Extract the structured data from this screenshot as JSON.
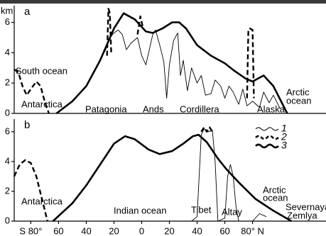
{
  "chart_data": [
    {
      "type": "line",
      "panel_label": "a",
      "y_label": "km",
      "xlim": [
        -92,
        133
      ],
      "ylim": [
        0,
        7.1
      ],
      "yticks": [
        0,
        2,
        4,
        6
      ],
      "annotations": [
        "South ocean",
        "Antarctica",
        "Patagonia",
        "Ands",
        "Cordillera",
        "Alaska",
        "Arctic",
        "ocean"
      ],
      "series": [
        {
          "name": "1",
          "color": "#000000",
          "style": "thin",
          "x": [
            -62,
            -50,
            -40,
            -35,
            -30,
            -26,
            -23,
            -20,
            -17,
            -14,
            -11,
            -8,
            -3,
            0,
            3,
            6,
            8,
            10,
            13,
            16,
            18,
            20,
            23,
            26,
            28,
            30,
            33,
            36,
            40,
            43,
            46,
            50,
            53,
            57,
            60,
            63,
            66,
            70,
            73,
            76,
            80,
            85,
            88,
            92,
            95,
            100
          ],
          "values": [
            0,
            0.8,
            1.8,
            2.7,
            3.5,
            4.2,
            5.0,
            5.3,
            5.5,
            5.2,
            4.2,
            4.6,
            5.0,
            3.8,
            3.2,
            4.4,
            5.2,
            5.5,
            4.5,
            3.4,
            1.0,
            3.2,
            4.8,
            5.3,
            2.5,
            3.5,
            1.5,
            3.0,
            2.0,
            2.5,
            1.2,
            1.3,
            2.2,
            1.8,
            1.0,
            1.8,
            1.4,
            0.6,
            1.6,
            0.5,
            0.8,
            0.4,
            1.4,
            0.7,
            1.2,
            0.3
          ]
        },
        {
          "name": "2",
          "color": "#000000",
          "style": "dashed",
          "x": [
            -92,
            -89,
            -86,
            -83,
            -80,
            -76,
            -73,
            -70,
            -67,
            null,
            -25,
            -24,
            -23,
            -22,
            null,
            -3,
            -1,
            1,
            null,
            76,
            77,
            78,
            80,
            81
          ],
          "values": [
            2.9,
            2.7,
            1.8,
            1.2,
            1.6,
            2.1,
            1.8,
            0.8,
            0,
            null,
            3.8,
            6.9,
            6.6,
            4.0,
            null,
            5.2,
            6.4,
            5.6,
            null,
            1.0,
            5.5,
            5.6,
            5.5,
            1.0
          ]
        },
        {
          "name": "3",
          "color": "#000000",
          "style": "thick",
          "x": [
            -61.5,
            -50,
            -40,
            -30,
            -20,
            -13,
            -5,
            3,
            8,
            15,
            22,
            27,
            32,
            40,
            50,
            60,
            67,
            75,
            80,
            88,
            95,
            105
          ],
          "values": [
            0,
            0.8,
            1.8,
            3.5,
            5.6,
            6.6,
            6.2,
            5.4,
            5.3,
            5.6,
            6.0,
            6.0,
            5.6,
            4.5,
            3.8,
            3.3,
            2.8,
            2.3,
            2.1,
            2.5,
            1.8,
            0
          ]
        }
      ]
    },
    {
      "type": "line",
      "panel_label": "b",
      "xlim": [
        -92,
        133
      ],
      "ylim": [
        0,
        6.85
      ],
      "yticks": [
        0,
        2,
        4,
        6
      ],
      "xticks": [
        {
          "value": -80,
          "label": "S 80°"
        },
        {
          "value": -60,
          "label": "60"
        },
        {
          "value": -40,
          "label": "40"
        },
        {
          "value": -20,
          "label": "20"
        },
        0,
        20,
        40,
        60,
        {
          "value": 80,
          "label": "80° N"
        }
      ],
      "annotations": [
        "Antarctica",
        "Indian ocean",
        "Tibet",
        "Altay",
        "Arctic",
        "ocean",
        "Severnaya",
        "Zemlya"
      ],
      "legend": true,
      "series": [
        {
          "name": "1",
          "color": "#000000",
          "style": "thin",
          "x": [
            36,
            40,
            43,
            45,
            48,
            51,
            53,
            55,
            60,
            62,
            64,
            66,
            68,
            70,
            80,
            85,
            90
          ],
          "values": [
            0,
            0.3,
            5.8,
            6.2,
            6.0,
            6.1,
            4.0,
            0,
            0.2,
            3.0,
            3.8,
            3.0,
            1.0,
            0,
            0,
            0.5,
            0.3
          ]
        },
        {
          "name": "2",
          "color": "#000000",
          "style": "dashed",
          "x": [
            -92,
            -88,
            -84,
            -80,
            -76,
            -72,
            -68,
            null,
            43,
            45,
            47,
            49,
            51
          ],
          "values": [
            3.0,
            3.8,
            4.1,
            3.9,
            3.0,
            1.5,
            0,
            null,
            6.0,
            6.3,
            6.0,
            6.3,
            6.0
          ]
        },
        {
          "name": "3",
          "color": "#000000",
          "style": "thick",
          "x": [
            -64,
            -50,
            -40,
            -30,
            -20,
            -12,
            -5,
            5,
            13,
            22,
            30,
            37,
            41,
            47,
            55,
            61,
            70,
            82,
            95,
            108
          ],
          "values": [
            0,
            1.2,
            2.4,
            3.8,
            5.2,
            5.7,
            5.5,
            4.8,
            4.5,
            4.7,
            5.2,
            5.7,
            5.8,
            5.3,
            4.2,
            3.5,
            2.6,
            1.5,
            0.7,
            0
          ]
        }
      ]
    }
  ]
}
